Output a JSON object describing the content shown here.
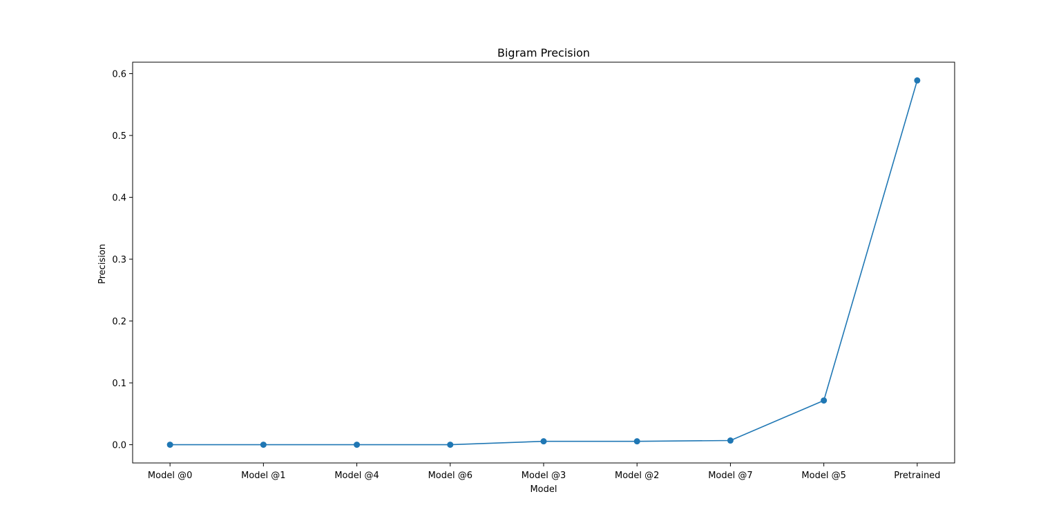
{
  "chart_data": {
    "type": "line",
    "title": "Bigram Precision",
    "xlabel": "Model",
    "ylabel": "Precision",
    "categories": [
      "Model @0",
      "Model @1",
      "Model @4",
      "Model @6",
      "Model @3",
      "Model @2",
      "Model @7",
      "Model @5",
      "Pretrained"
    ],
    "series": [
      {
        "values": [
          0.0,
          0.0,
          0.0,
          0.0,
          0.0055,
          0.0055,
          0.0068,
          0.0715,
          0.589
        ],
        "color": "#1f77b4",
        "marker": "circle"
      }
    ],
    "ylim": [
      -0.0295,
      0.6185
    ],
    "yticks": [
      0.0,
      0.1,
      0.2,
      0.3,
      0.4,
      0.5,
      0.6
    ],
    "ytick_labels": [
      "0.0",
      "0.1",
      "0.2",
      "0.3",
      "0.4",
      "0.5",
      "0.6"
    ],
    "grid": false,
    "legend": "none"
  }
}
